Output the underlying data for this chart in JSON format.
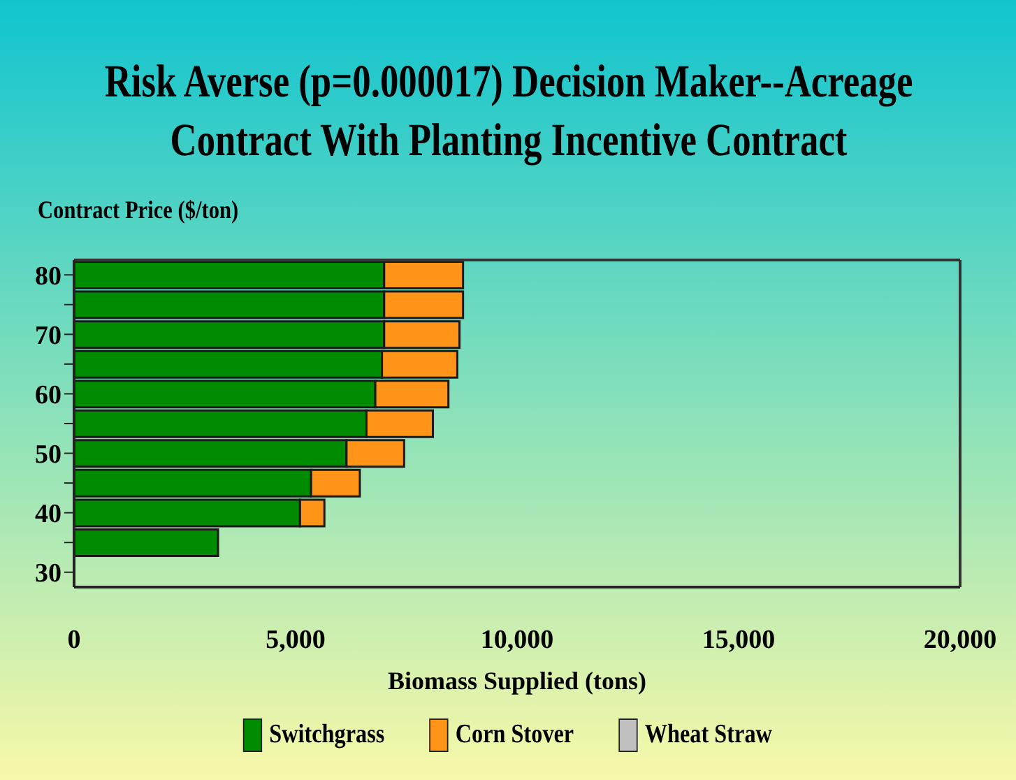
{
  "chart_data": {
    "type": "bar",
    "title": "Risk Averse (p=0.000017) Decision Maker--Acreage Contract With Planting Incentive Contract",
    "orientation": "horizontal",
    "stacked": true,
    "xlabel": "Biomass Supplied (tons)",
    "ylabel": "Contract Price ($/ton)",
    "categories": [
      "80",
      null,
      "70",
      null,
      "60",
      null,
      "50",
      null,
      "40",
      null,
      "30"
    ],
    "series": [
      {
        "name": "Switchgrass",
        "color": "#008c00",
        "values": [
          7000,
          7000,
          7000,
          6950,
          6800,
          6600,
          6150,
          5350,
          5100,
          3250,
          null
        ]
      },
      {
        "name": "Corn Stover",
        "color": "#ff9418",
        "values": [
          1780,
          1780,
          1700,
          1700,
          1650,
          1500,
          1300,
          1100,
          550,
          null,
          null
        ]
      },
      {
        "name": "Wheat Straw",
        "color": "#c0c0c0",
        "values": [
          null,
          null,
          null,
          null,
          null,
          null,
          null,
          null,
          null,
          null,
          null
        ]
      }
    ],
    "xlim": [
      0,
      20000
    ],
    "xticks": [
      0,
      {
        "value": 5000,
        "label": "5,000"
      },
      {
        "value": 10000,
        "label": "10,000"
      },
      {
        "value": 15000,
        "label": "15,000"
      },
      {
        "value": 20000,
        "label": "20,000"
      }
    ],
    "legend": "bottom",
    "grid": false
  }
}
